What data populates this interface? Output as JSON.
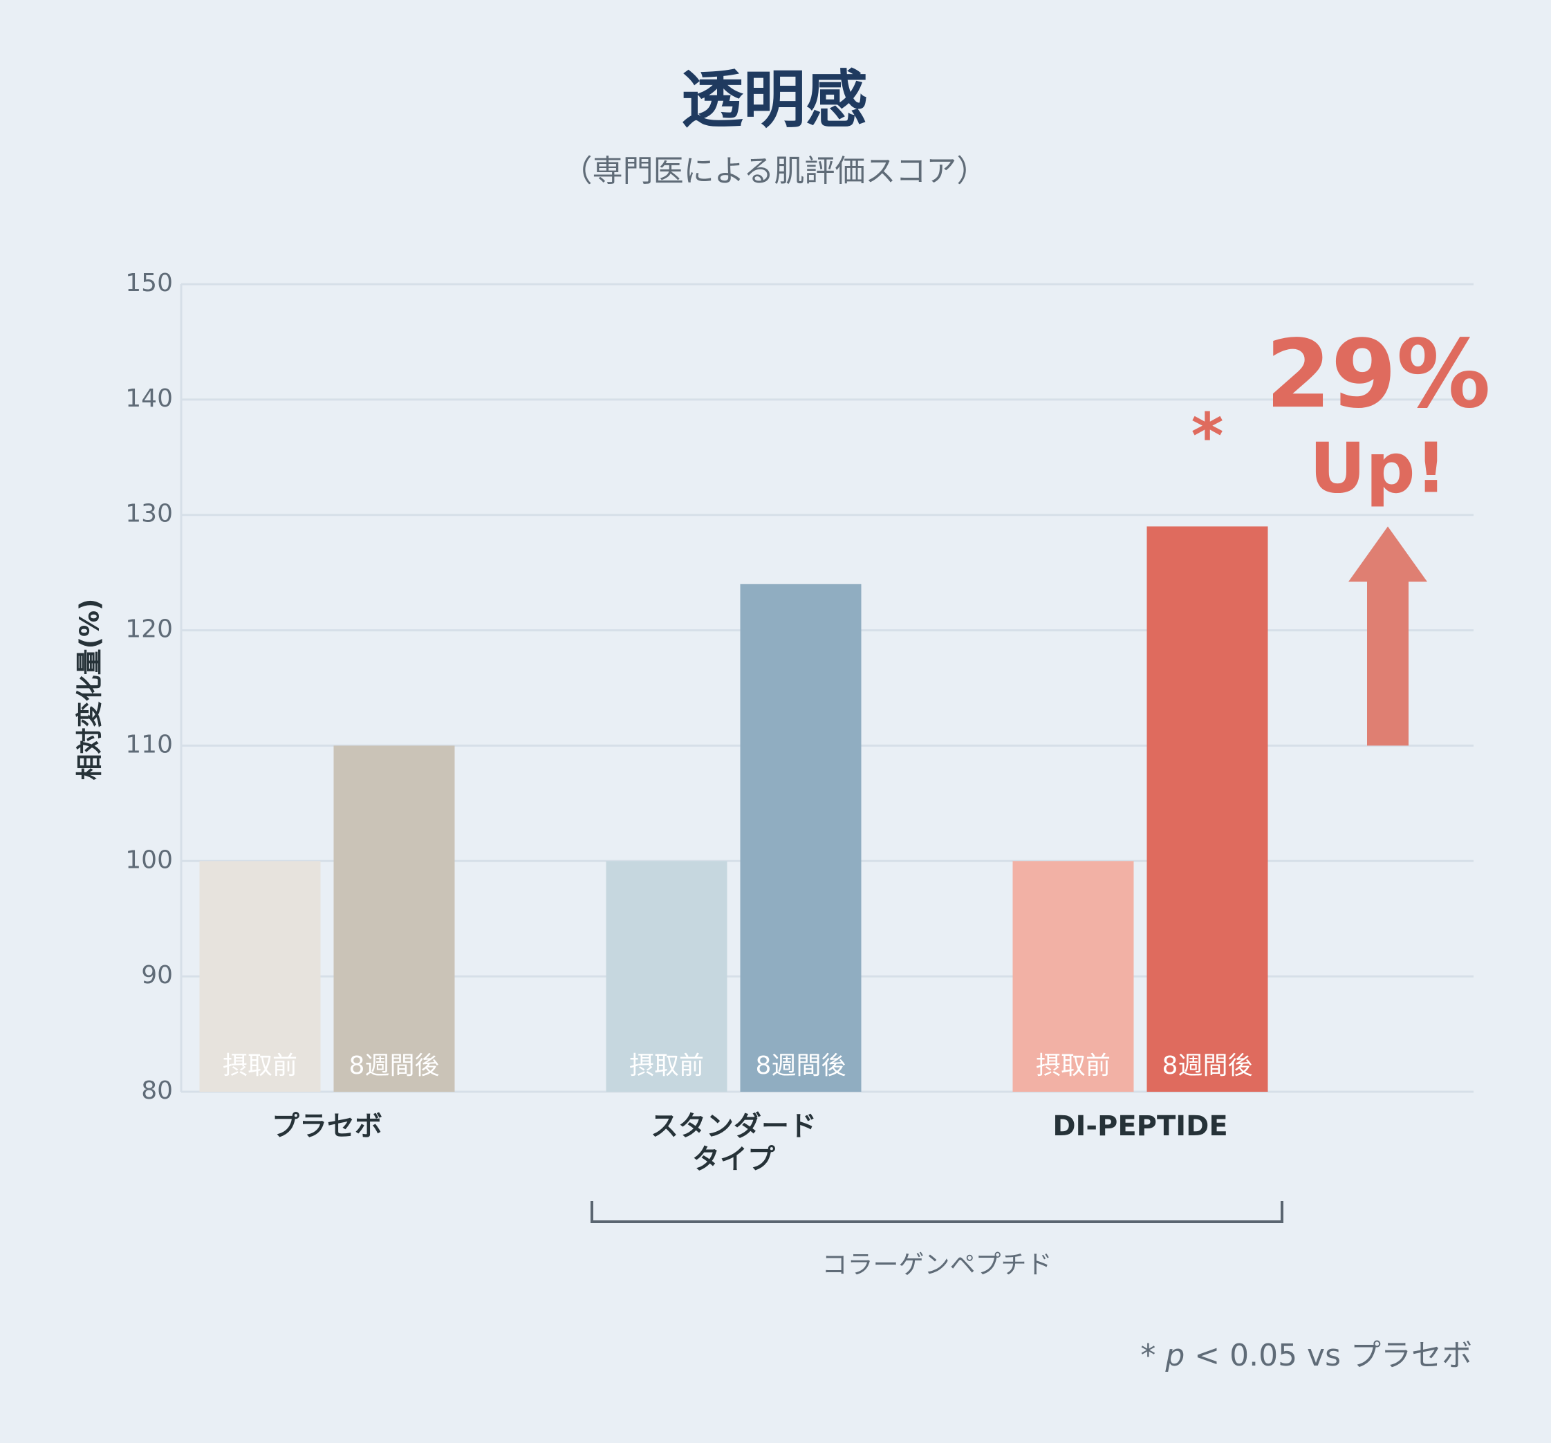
{
  "chart_data": {
    "type": "bar",
    "title": "透明感",
    "subtitle": "（専門医による肌評価スコア）",
    "y_label": "相対変化量(%)",
    "categories": [
      "プラセボ",
      "スタンダード\nタイプ",
      "DI-PEPTIDE"
    ],
    "series": [
      {
        "name": "摂取前",
        "colors": [
          "#e7e3dd",
          "#c6d7df",
          "#f2b1a5"
        ],
        "values": [
          100,
          100,
          100
        ]
      },
      {
        "name": "8週間後",
        "colors": [
          "#cac3b7",
          "#90adc1",
          "#df6b5e"
        ],
        "values": [
          110,
          124,
          129
        ]
      }
    ],
    "ylim": [
      80,
      150
    ],
    "yticks": [
      80,
      90,
      100,
      110,
      120,
      130,
      140,
      150
    ],
    "grid": true,
    "group_bracket": {
      "label": "コラーゲンペプチド",
      "from": 1,
      "to": 2
    },
    "significance_mark": "*",
    "callout": {
      "value_text": "29%",
      "text": "Up!",
      "color": "#df7f72"
    },
    "footnote": {
      "prefix": "* ",
      "italic": "p",
      "suffix": " < 0.05 vs プラセボ"
    }
  }
}
